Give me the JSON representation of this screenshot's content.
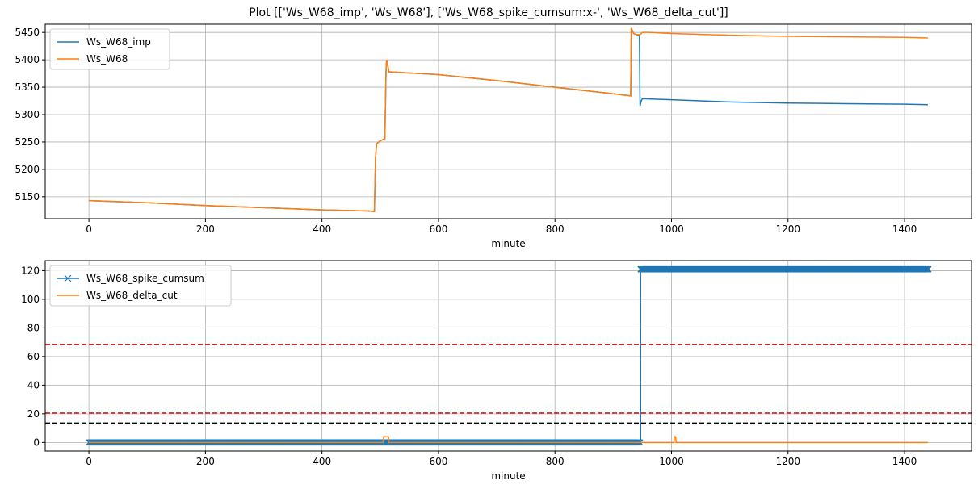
{
  "figure": {
    "title": "Plot [['Ws_W68_imp', 'Ws_W68'], ['Ws_W68_spike_cumsum:x-', 'Ws_W68_delta_cut']]"
  },
  "colors": {
    "blue": "#1f77b4",
    "orange": "#ff7f0e",
    "red": "#e41a1c",
    "black": "#000000",
    "grid": "#b0b0b0"
  },
  "chart_data": [
    {
      "type": "line",
      "xlabel": "minute",
      "ylabel": "",
      "xlim": [
        -75,
        1515
      ],
      "ylim": [
        5110,
        5465
      ],
      "xticks": [
        0,
        200,
        400,
        600,
        800,
        1000,
        1200,
        1400
      ],
      "yticks": [
        5150,
        5200,
        5250,
        5300,
        5350,
        5400,
        5450
      ],
      "grid": true,
      "legend": "top-left",
      "series": [
        {
          "name": "Ws_W68_imp",
          "color": "#1f77b4",
          "x": [
            0,
            100,
            200,
            300,
            400,
            480,
            490,
            492,
            494,
            500,
            508,
            510,
            511,
            515,
            600,
            700,
            800,
            900,
            930,
            931,
            935,
            940,
            945,
            946,
            948,
            950,
            1000,
            1100,
            1200,
            1300,
            1400,
            1440
          ],
          "y": [
            5143,
            5139,
            5134,
            5130,
            5126,
            5124,
            5123,
            5222,
            5247,
            5252,
            5256,
            5380,
            5400,
            5378,
            5373,
            5362,
            5350,
            5338,
            5334,
            5458,
            5448,
            5446,
            5444,
            5316,
            5325,
            5329,
            5327,
            5323,
            5321,
            5320,
            5319,
            5318
          ]
        },
        {
          "name": "Ws_W68",
          "color": "#ff7f0e",
          "x": [
            0,
            100,
            200,
            300,
            400,
            480,
            490,
            492,
            494,
            500,
            508,
            510,
            511,
            515,
            600,
            700,
            800,
            900,
            930,
            931,
            935,
            940,
            946,
            950,
            960,
            1000,
            1100,
            1200,
            1300,
            1400,
            1440
          ],
          "y": [
            5143,
            5139,
            5134,
            5130,
            5126,
            5124,
            5123,
            5222,
            5247,
            5252,
            5256,
            5380,
            5400,
            5378,
            5373,
            5362,
            5350,
            5338,
            5334,
            5458,
            5448,
            5446,
            5446,
            5450,
            5450,
            5448,
            5445,
            5443,
            5442,
            5441,
            5440
          ]
        }
      ]
    },
    {
      "type": "line",
      "xlabel": "minute",
      "ylabel": "",
      "xlim": [
        -75,
        1515
      ],
      "ylim": [
        -6,
        127
      ],
      "xticks": [
        0,
        200,
        400,
        600,
        800,
        1000,
        1200,
        1400
      ],
      "yticks": [
        0,
        20,
        40,
        60,
        80,
        100,
        120
      ],
      "grid": true,
      "legend": "top-left",
      "series": [
        {
          "name": "Ws_W68_spike_cumsum",
          "color": "#1f77b4",
          "marker": "x",
          "x_range": [
            0,
            1441
          ],
          "step_at": 947,
          "values_before_after": [
            0,
            121
          ]
        },
        {
          "name": "Ws_W68_delta_cut",
          "color": "#ff7f0e",
          "x": [
            0,
            505,
            506,
            514,
            515,
            1004,
            1005,
            1007,
            1008,
            1440
          ],
          "y": [
            0,
            0,
            4,
            4,
            0,
            0,
            4,
            4,
            0,
            0
          ]
        }
      ],
      "hlines": [
        {
          "y": 68.5,
          "color": "#e41a1c",
          "style": "dashed"
        },
        {
          "y": 20.5,
          "color": "#e41a1c",
          "style": "dashed"
        },
        {
          "y": 13.5,
          "color": "#000000",
          "style": "dashed"
        }
      ]
    }
  ]
}
